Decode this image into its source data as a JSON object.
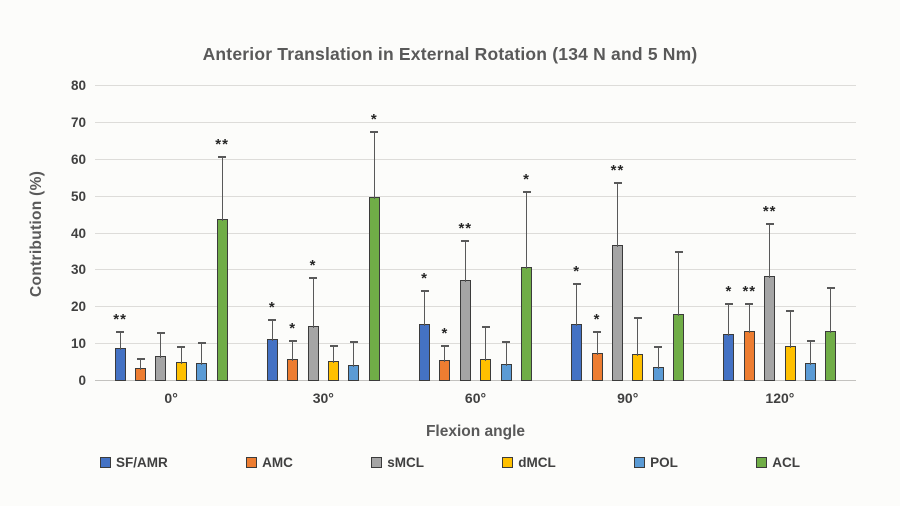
{
  "chart_data": {
    "type": "bar",
    "title": "Anterior Translation in External Rotation (134 N and 5 Nm)",
    "xlabel": "Flexion angle",
    "ylabel": "Contribution  (%)",
    "ylim": [
      0,
      80
    ],
    "yticks": [
      0,
      10,
      20,
      30,
      40,
      50,
      60,
      70,
      80
    ],
    "grid": true,
    "legend_position": "bottom",
    "categories": [
      "0°",
      "30°",
      "60°",
      "90°",
      "120°"
    ],
    "series": [
      {
        "name": "SF/AMR",
        "color": "#4472C4",
        "values": [
          9,
          11.5,
          15.5,
          15.5,
          12.7
        ],
        "error_top": [
          13,
          16.3,
          24.2,
          26,
          20.5
        ],
        "annotations": [
          "**",
          "*",
          "*",
          "*",
          "*"
        ]
      },
      {
        "name": "AMC",
        "color": "#ED7D31",
        "values": [
          3.4,
          6,
          5.8,
          7.6,
          13.6
        ],
        "error_top": [
          5.7,
          10.6,
          9.3,
          13.1,
          20.7
        ],
        "annotations": [
          "",
          "*",
          "*",
          "*",
          "**"
        ]
      },
      {
        "name": "sMCL",
        "color": "#A5A5A5",
        "values": [
          6.8,
          14.8,
          27.3,
          36.8,
          28.4
        ],
        "error_top": [
          12.8,
          27.8,
          37.6,
          53.5,
          42.2
        ],
        "annotations": [
          "",
          "*",
          "**",
          "**",
          "**"
        ]
      },
      {
        "name": "dMCL",
        "color": "#FFC000",
        "values": [
          5.1,
          5.3,
          6,
          7.3,
          9.5
        ],
        "error_top": [
          9,
          9.3,
          14.4,
          16.8,
          18.8
        ],
        "annotations": [
          "",
          "",
          "",
          "",
          ""
        ]
      },
      {
        "name": "POL",
        "color": "#5B9BD5",
        "values": [
          5,
          4.4,
          4.5,
          3.8,
          4.8
        ],
        "error_top": [
          10.1,
          10.3,
          10.3,
          9,
          10.6
        ],
        "annotations": [
          "",
          "",
          "",
          "",
          ""
        ]
      },
      {
        "name": "ACL",
        "color": "#70AD47",
        "values": [
          44,
          50,
          31,
          18.3,
          13.5
        ],
        "error_top": [
          60.5,
          67.2,
          51,
          34.7,
          25
        ],
        "annotations": [
          "**",
          "*",
          "*",
          "",
          ""
        ]
      }
    ]
  }
}
